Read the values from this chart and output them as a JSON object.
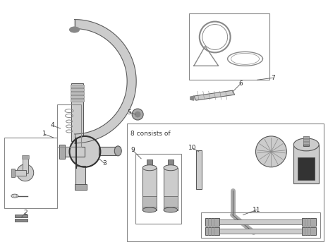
{
  "background_color": "#ffffff",
  "line_color": "#555555",
  "text_color": "#333333",
  "fig_width": 4.65,
  "fig_height": 3.5,
  "dpi": 100,
  "lgray": "#cccccc",
  "dgray": "#888888",
  "mgray": "#aaaaaa",
  "darkgray": "#555555"
}
